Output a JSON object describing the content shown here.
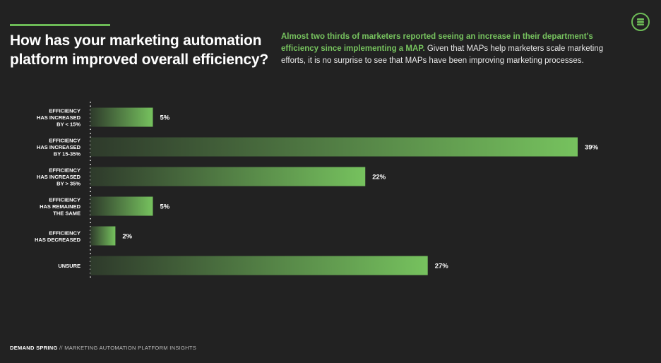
{
  "header": {
    "title": "How has your marketing automation platform improved overall efficiency?",
    "intro_highlight": "Almost two thirds of marketers reported seeing an increase in their department's efficiency since implementing a MAP.",
    "intro_rest": " Given that MAPs help marketers scale marketing efforts, it is no surprise to see that MAPs have been improving marketing processes."
  },
  "footer": {
    "brand": "DEMAND SPRING",
    "separator": " // ",
    "subtitle": "MARKETING AUTOMATION PLATFORM INSIGHTS"
  },
  "colors": {
    "accent": "#6dbb57",
    "bar_start": "#2e3a2b",
    "bar_end": "#76c25e",
    "background": "#222222"
  },
  "logo_icon": "stacked-pages-icon",
  "chart_data": {
    "type": "bar",
    "orientation": "horizontal",
    "categories": [
      [
        "EFFICIENCY",
        "HAS INCREASED",
        "BY < 15%"
      ],
      [
        "EFFICIENCY",
        "HAS INCREASED",
        "BY 15-35%"
      ],
      [
        "EFFICIENCY",
        "HAS INCREASED",
        "BY > 35%"
      ],
      [
        "EFFICIENCY",
        "HAS REMAINED",
        "THE SAME"
      ],
      [
        "EFFICIENCY",
        "HAS DECREASED"
      ],
      [
        "UNSURE"
      ]
    ],
    "values": [
      5,
      39,
      22,
      5,
      2,
      27
    ],
    "value_labels": [
      "5%",
      "39%",
      "22%",
      "5%",
      "2%",
      "27%"
    ],
    "xlim": [
      0,
      40
    ],
    "grid": false,
    "legend": "none"
  }
}
